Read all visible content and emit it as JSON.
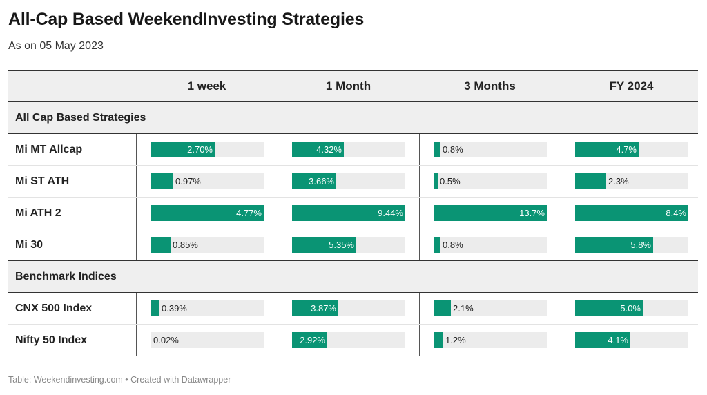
{
  "title": "All-Cap Based WeekendInvesting Strategies",
  "subtitle": "As on 05 May 2023",
  "footer": "Table: Weekendinvesting.com • Created with Datawrapper",
  "chart_data": {
    "type": "table",
    "columns": [
      "1 week",
      "1 Month",
      "3 Months",
      "FY 2024"
    ],
    "column_max": [
      4.77,
      9.44,
      13.7,
      8.4
    ],
    "bar_color": "#0a9474",
    "groups": [
      {
        "name": "All Cap Based Strategies",
        "rows": [
          {
            "label": "Mi MT Allcap",
            "values": [
              2.7,
              4.32,
              0.8,
              4.7
            ],
            "labels": [
              "2.70%",
              "4.32%",
              "0.8%",
              "4.7%"
            ]
          },
          {
            "label": "Mi ST ATH",
            "values": [
              0.97,
              3.66,
              0.5,
              2.3
            ],
            "labels": [
              "0.97%",
              "3.66%",
              "0.5%",
              "2.3%"
            ]
          },
          {
            "label": "Mi ATH 2",
            "values": [
              4.77,
              9.44,
              13.7,
              8.4
            ],
            "labels": [
              "4.77%",
              "9.44%",
              "13.7%",
              "8.4%"
            ]
          },
          {
            "label": "Mi 30",
            "values": [
              0.85,
              5.35,
              0.8,
              5.8
            ],
            "labels": [
              "0.85%",
              "5.35%",
              "0.8%",
              "5.8%"
            ]
          }
        ]
      },
      {
        "name": "Benchmark Indices",
        "rows": [
          {
            "label": "CNX 500 Index",
            "values": [
              0.39,
              3.87,
              2.1,
              5.0
            ],
            "labels": [
              "0.39%",
              "3.87%",
              "2.1%",
              "5.0%"
            ]
          },
          {
            "label": "Nifty 50 Index",
            "values": [
              0.02,
              2.92,
              1.2,
              4.1
            ],
            "labels": [
              "0.02%",
              "2.92%",
              "1.2%",
              "4.1%"
            ]
          }
        ]
      }
    ]
  }
}
